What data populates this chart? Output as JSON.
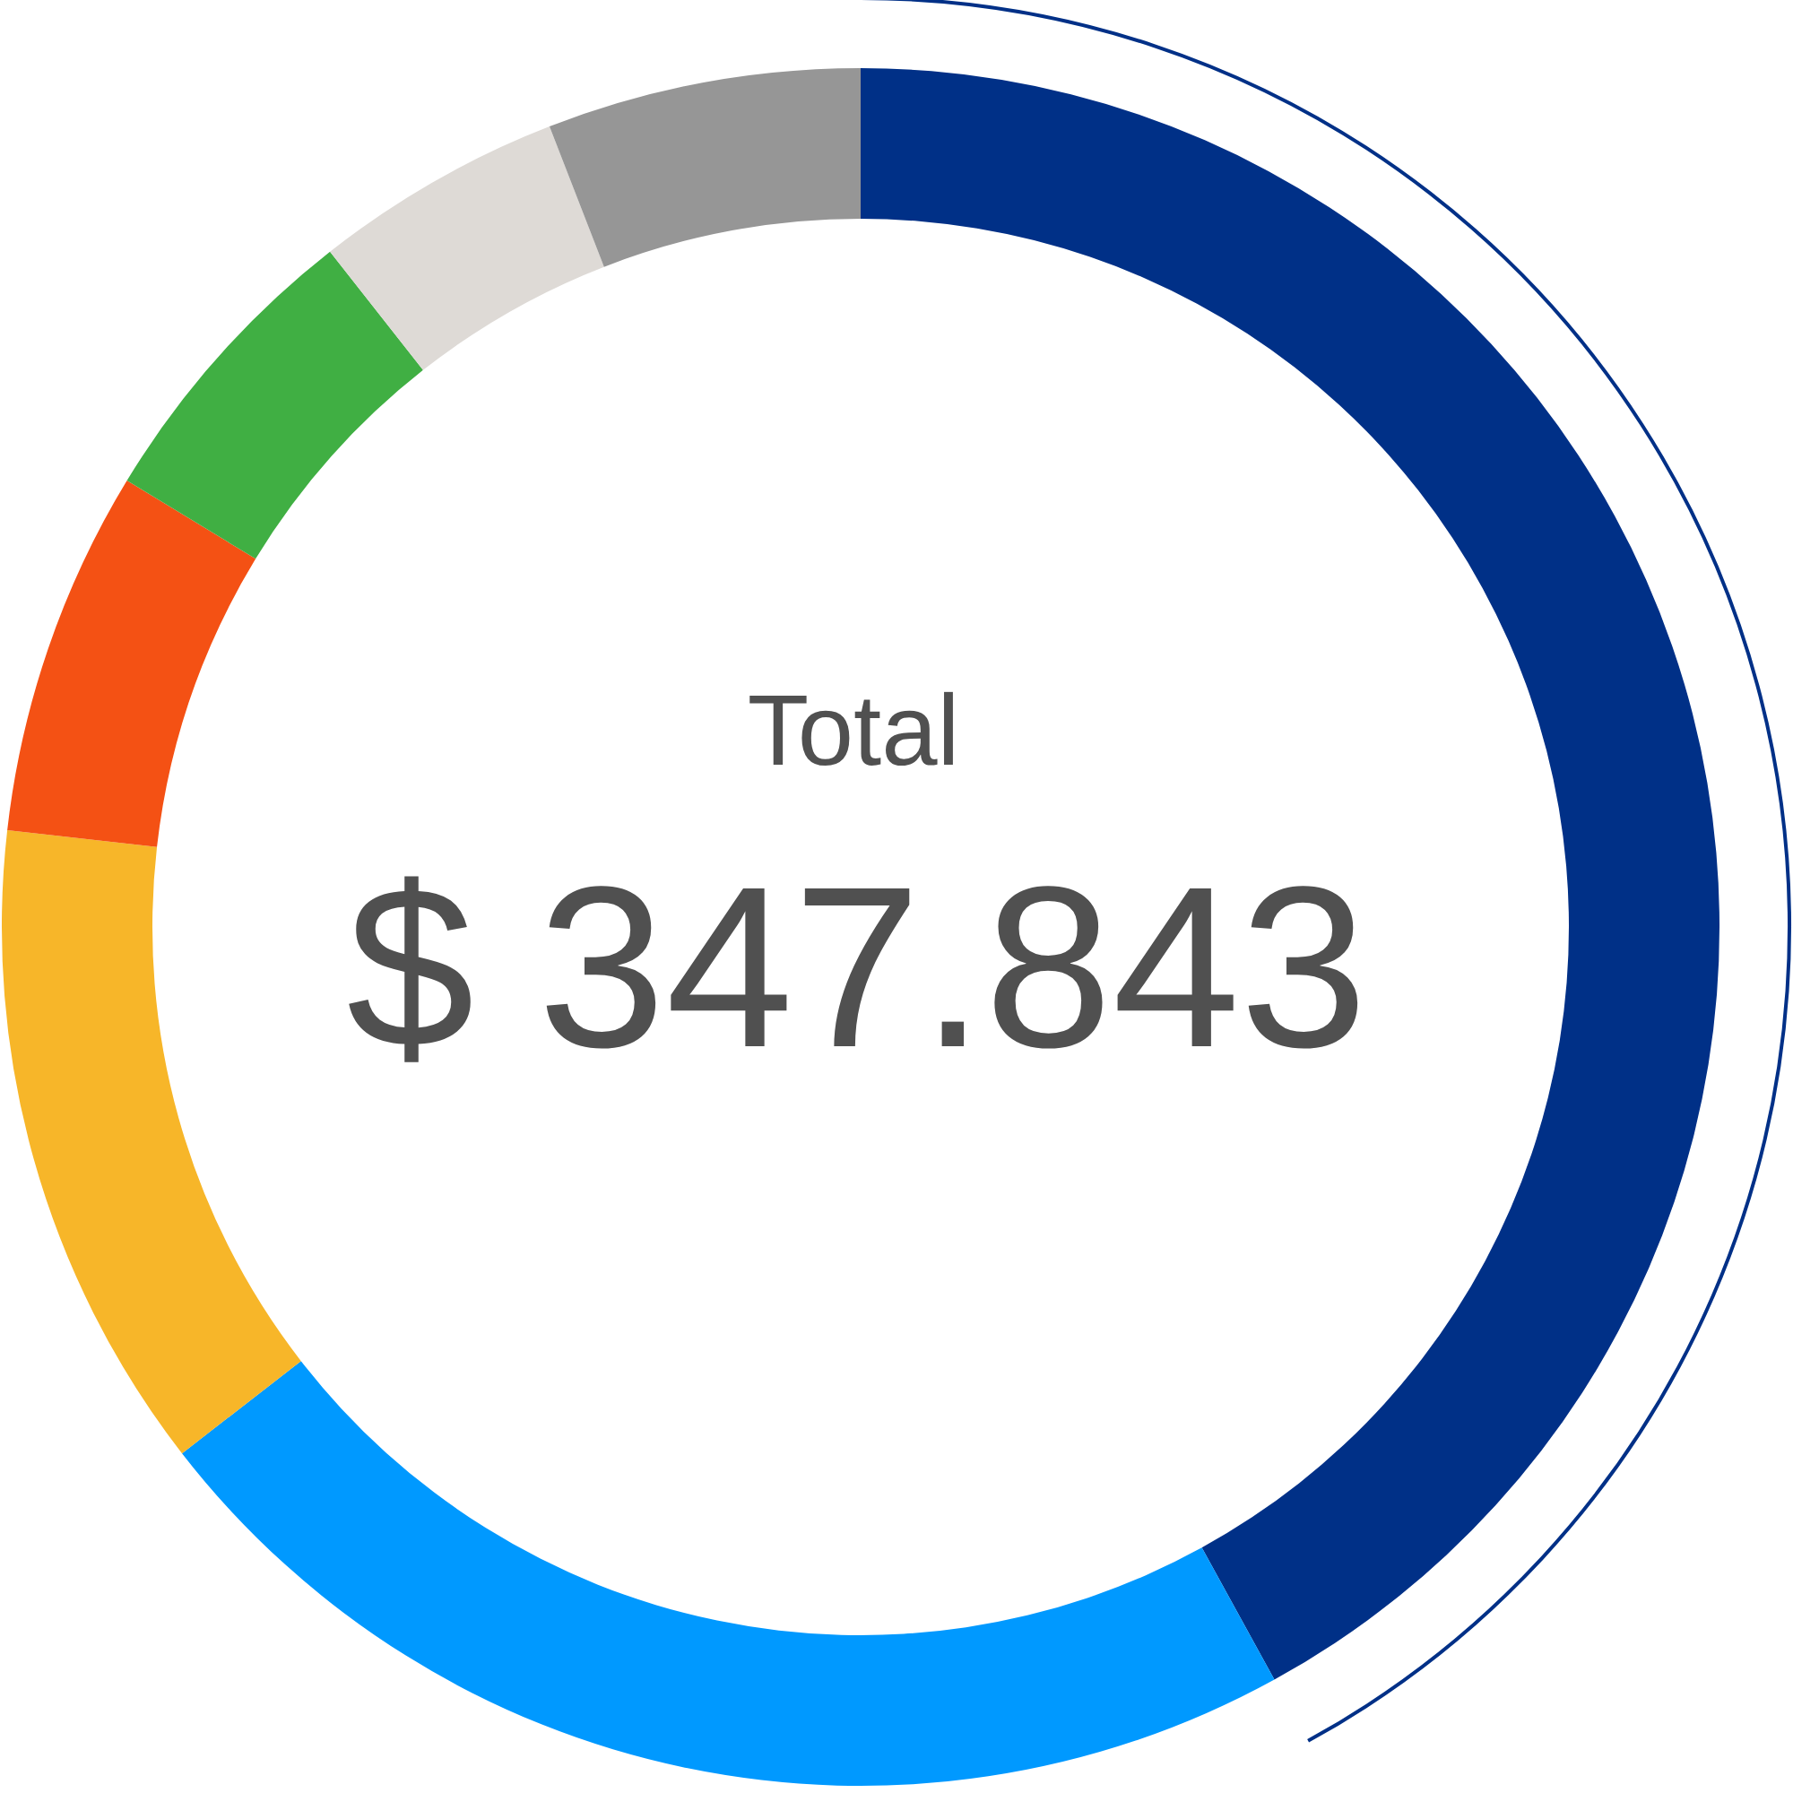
{
  "chart_data": {
    "type": "donut",
    "title": "Total",
    "subtitle": "$ 347.843",
    "categories": [
      null,
      null,
      null,
      null,
      null,
      null,
      null
    ],
    "values": [
      42.0,
      22.5,
      12.3,
      6.9,
      5.7,
      4.7,
      5.9
    ],
    "colors": [
      "#003087",
      "#0099ff",
      "#f7b629",
      "#f45114",
      "#40af43",
      "#dedad6",
      "#969696"
    ]
  }
}
